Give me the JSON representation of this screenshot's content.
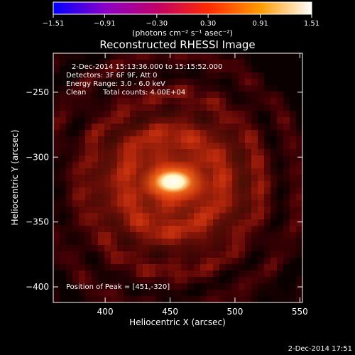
{
  "chart_data": {
    "type": "heatmap",
    "title": "Reconstructed RHESSI Image",
    "xlabel": "Heliocentric X (arcsec)",
    "ylabel": "Heliocentric Y (arcsec)",
    "xlim": [
      360,
      552
    ],
    "ylim": [
      -412,
      -220
    ],
    "x_ticks": [
      400,
      450,
      500,
      550
    ],
    "y_ticks": [
      -250,
      -300,
      -350,
      -400
    ],
    "x_tick_labels": [
      "400",
      "450",
      "500",
      "550"
    ],
    "y_tick_labels": [
      "−250",
      "−300",
      "−350",
      "−400"
    ],
    "colorbar": {
      "ticks": [
        -1.51,
        -0.91,
        -0.3,
        0.3,
        0.91,
        1.51
      ],
      "tick_labels": [
        "−1.51",
        "−0.91",
        "−0.30",
        "0.30",
        "0.91",
        "1.51"
      ],
      "units": "(photons cm⁻² s⁻¹ asec⁻²)",
      "range": [
        -1.51,
        1.51
      ],
      "stops": [
        "#0000ff",
        "#8a00c8",
        "#c0006a",
        "#ff2a00",
        "#ff9a00",
        "#ffffff"
      ]
    },
    "peak": {
      "x": 451,
      "y": -320,
      "value": 1.51
    },
    "annotations": {
      "time": "2-Dec-2014 15:13:36.000 to 15:15:52.000",
      "detectors": "Detectors: 3F 6F 9F, Att 0",
      "energy": "Energy Range: 3.0 - 6.0 keV",
      "clean_label": "Clean",
      "counts": "Total counts: 4.00E+04",
      "peak_position": "Position of Peak = [451,-320]"
    },
    "footer_date": "2-Dec-2014 17:51"
  }
}
